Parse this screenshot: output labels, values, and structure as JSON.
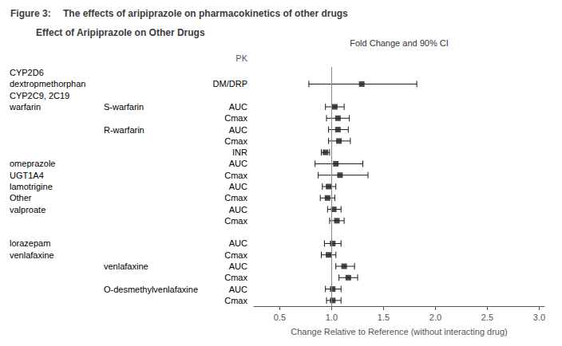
{
  "chart_data": {
    "type": "forest",
    "title": "Figure 3:",
    "subtitle": "The effects of aripiprazole on pharmacokinetics of other drugs",
    "chart_title": "Effect of Aripiprazole on Other Drugs",
    "xlabel": "Change Relative to Reference (without interacting drug)",
    "ci_label": "Fold Change and 90% CI",
    "column_header": "PK",
    "drug_labels": [
      "CYP2D6",
      "dextropmethorphan",
      "CYP2C9, 2C19",
      "warfarin",
      null,
      null,
      null,
      null,
      "omeprazole",
      "UGT1A4",
      "lamotrigine",
      "Other",
      "valproate",
      null,
      null,
      "lorazepam",
      "venlafaxine",
      null,
      null,
      null,
      null
    ],
    "subgroup_labels": [
      null,
      null,
      null,
      "S-warfarin",
      null,
      "R-warfarin",
      null,
      null,
      null,
      null,
      null,
      null,
      null,
      null,
      null,
      null,
      null,
      "venlafaxine",
      null,
      "O-desmethylvenlafaxine",
      null
    ],
    "categories": [
      null,
      "DM/DRP",
      null,
      "AUC",
      "Cmax",
      "AUC",
      "Cmax",
      "INR",
      "AUC",
      "Cmax",
      "AUC",
      "Cmax",
      "AUC",
      "Cmax",
      null,
      "AUC",
      "Cmax",
      "AUC",
      "Cmax",
      "AUC",
      "Cmax"
    ],
    "values": [
      null,
      1.29,
      null,
      1.03,
      1.06,
      1.06,
      1.07,
      0.94,
      1.04,
      1.08,
      0.97,
      0.96,
      1.02,
      1.05,
      null,
      1.01,
      0.97,
      1.12,
      1.16,
      1.01,
      1.01
    ],
    "lo": [
      null,
      0.78,
      null,
      0.94,
      0.95,
      0.97,
      0.97,
      0.9,
      0.84,
      0.87,
      0.91,
      0.89,
      0.96,
      0.98,
      null,
      0.93,
      0.9,
      1.04,
      1.07,
      0.94,
      0.95
    ],
    "hi": [
      null,
      1.82,
      null,
      1.12,
      1.17,
      1.16,
      1.18,
      0.98,
      1.3,
      1.35,
      1.04,
      1.03,
      1.09,
      1.12,
      null,
      1.09,
      1.04,
      1.22,
      1.25,
      1.09,
      1.09
    ],
    "reference_line": 1.0,
    "xlim": [
      0.25,
      3.05
    ],
    "xticks": [
      0.5,
      {
        "value": 1.0,
        "label": "1.0"
      },
      1.5,
      {
        "value": 2.0,
        "label": "2.0"
      },
      2.5,
      {
        "value": 3.0,
        "label": "3.0"
      }
    ],
    "color": "#1a1a1a",
    "marker": "square",
    "grid": false
  }
}
